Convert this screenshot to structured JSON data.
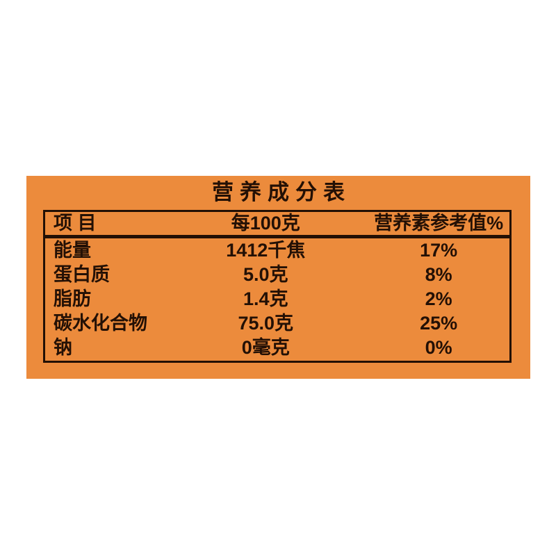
{
  "label": {
    "title": "营养成分表",
    "table": {
      "headers": {
        "item": "项 目",
        "per_100g": "每100克",
        "nrv": "营养素参考值%"
      },
      "rows": [
        {
          "item": "能量",
          "per_100g": "1412千焦",
          "nrv": "17%"
        },
        {
          "item": "蛋白质",
          "per_100g": "5.0克",
          "nrv": "8%"
        },
        {
          "item": "脂肪",
          "per_100g": "1.4克",
          "nrv": "2%"
        },
        {
          "item": "碳水化合物",
          "per_100g": "75.0克",
          "nrv": "25%"
        },
        {
          "item": "钠",
          "per_100g": "0毫克",
          "nrv": "0%"
        }
      ]
    },
    "colors": {
      "panel_background": "#EC8B3C",
      "ink": "#231005",
      "page_background": "#FFFFFF"
    }
  }
}
